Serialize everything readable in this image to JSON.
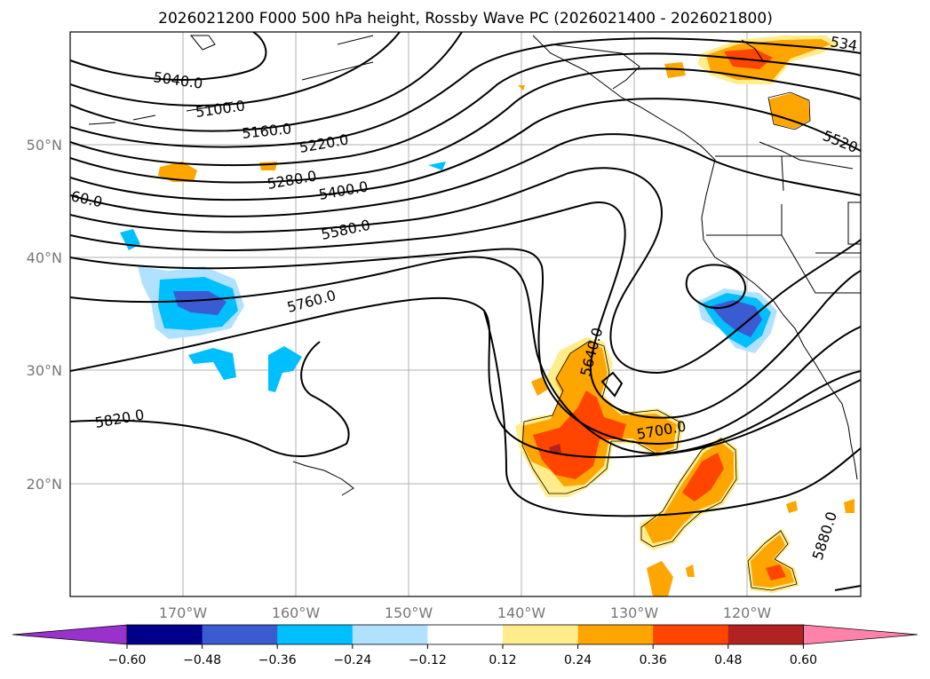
{
  "title": "2026021200 F000 500 hPa height, Rossby Wave PC (2026021400 - 2026021800)",
  "lat_labels": [
    "50°N",
    "40°N",
    "30°N",
    "20°N"
  ],
  "lon_labels": [
    "170°W",
    "160°W",
    "150°W",
    "140°W",
    "130°W",
    "120°W"
  ],
  "contour_labels": [
    "5040.0",
    "5100.0",
    "5160.0",
    "5220.0",
    "5280.0",
    "5400.0",
    "5580.0",
    "5760.0",
    "5820.0",
    "5640.0",
    "5700.0",
    "5880.0",
    "5520",
    "534",
    "60.0"
  ],
  "colorbar": {
    "ticks": [
      "−0.60",
      "−0.48",
      "−0.36",
      "−0.24",
      "−0.12",
      "0.12",
      "0.24",
      "0.36",
      "0.48",
      "0.60"
    ],
    "colors": [
      "#9932cc",
      "#00008b",
      "#3a5bd1",
      "#00bfff",
      "#b0e2ff",
      "#ffffff",
      "#ffec8b",
      "#ffa500",
      "#ff4500",
      "#b22222",
      "#ff82ab"
    ]
  },
  "colors": {
    "neg_light": "#b0e2ff",
    "neg_mid": "#00bfff",
    "neg_strong": "#3a5bd1",
    "pos_light": "#ffec8b",
    "pos_mid": "#ffa500",
    "pos_strong": "#ff4500",
    "pos_max": "#b22222"
  }
}
